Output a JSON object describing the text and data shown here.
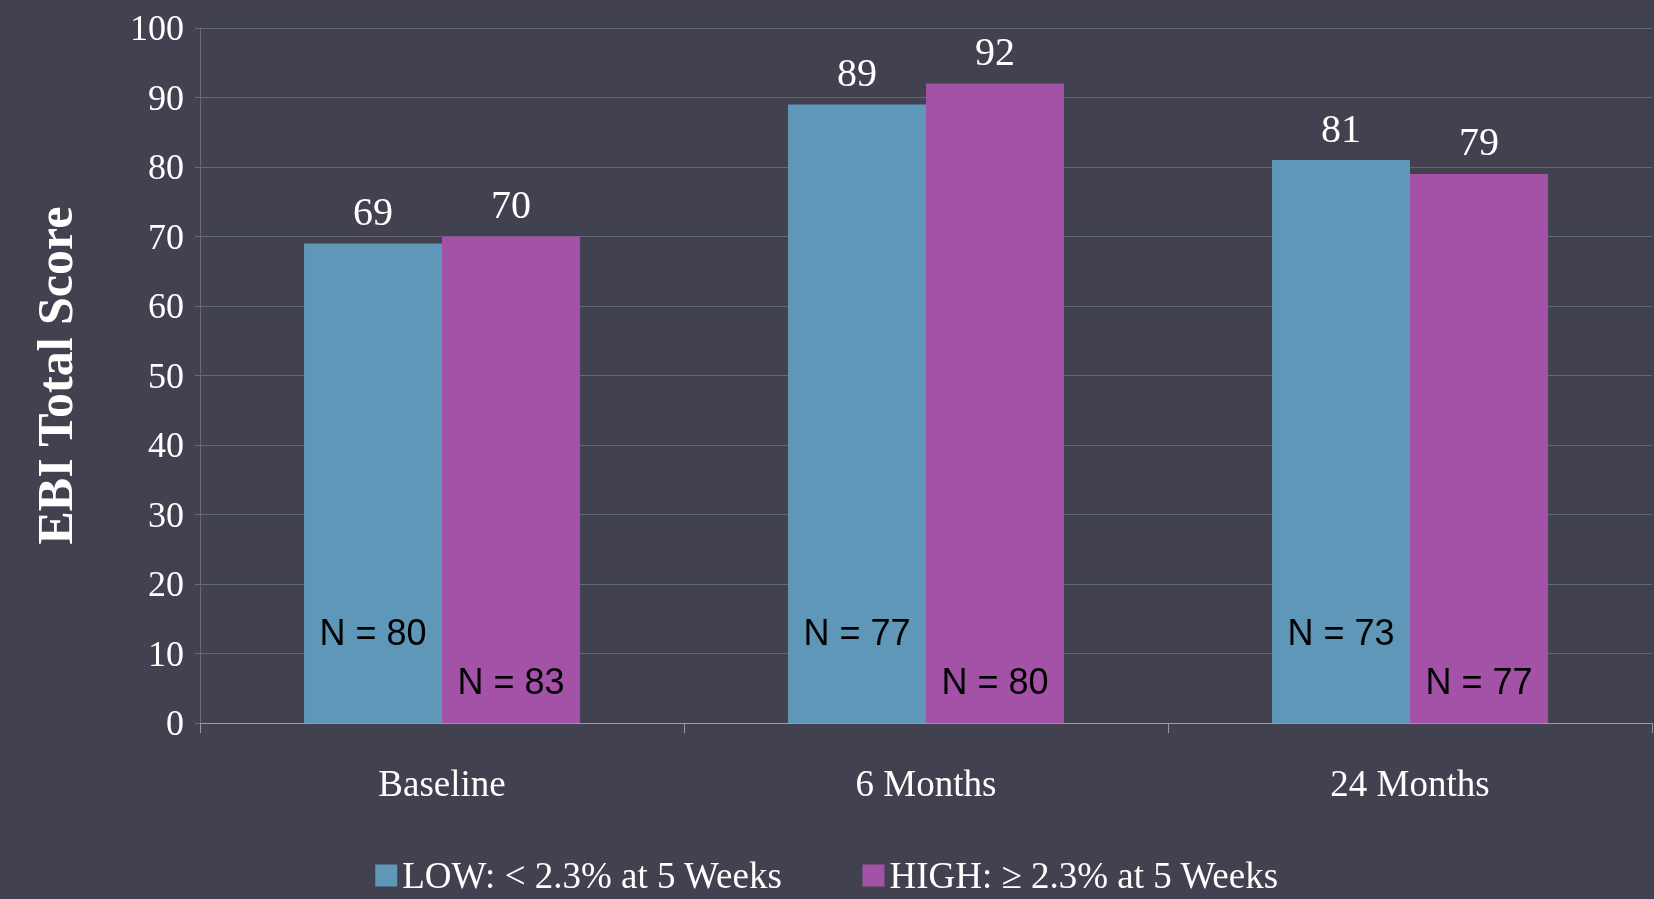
{
  "chart_data": {
    "type": "bar",
    "ylabel": "EBI Total Score",
    "categories": [
      "Baseline",
      "6 Months",
      "24 Months"
    ],
    "series": [
      {
        "name": "LOW: < 2.3% at 5 Weeks",
        "color": "#5f97b9",
        "values": [
          69,
          89,
          81
        ]
      },
      {
        "name": "HIGH: ≥ 2.3% at 5 Weeks",
        "color": "#a352a8",
        "values": [
          70,
          92,
          79
        ]
      }
    ],
    "ylim": [
      0,
      100
    ],
    "yticks": [
      0,
      10,
      20,
      30,
      40,
      50,
      60,
      70,
      80,
      90,
      100
    ],
    "grid": "y",
    "legend": "bottom",
    "data_labels": true,
    "annotations": [
      {
        "text": "N = 80",
        "x": "Baseline",
        "y": 13
      },
      {
        "text": "N = 83",
        "x": "Baseline",
        "y": 6
      },
      {
        "text": "N = 77",
        "x": "6 Months",
        "y": 13
      },
      {
        "text": "N = 80",
        "x": "6 Months",
        "y": 6
      },
      {
        "text": "N = 73",
        "x": "24 Months",
        "y": 13
      },
      {
        "text": "N = 77",
        "x": "24 Months",
        "y": 6
      }
    ]
  }
}
